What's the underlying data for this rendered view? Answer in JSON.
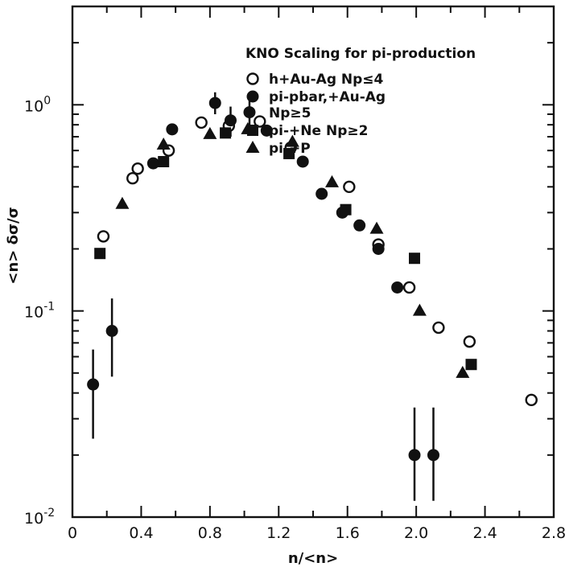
{
  "chart_data": {
    "type": "scatter",
    "title": "",
    "xlabel": "n/<n>",
    "ylabel": "<n> δσ/σ",
    "xlim": [
      0,
      2.8
    ],
    "ylim": [
      0.01,
      3
    ],
    "y_scale": "log",
    "grid": false,
    "x_ticks": [
      0,
      0.4,
      0.8,
      1.2,
      1.6,
      2.0,
      2.4,
      2.8
    ],
    "x_tick_labels": [
      "0",
      "0.4",
      "0.8",
      "1.2",
      "1.6",
      "2.0",
      "2.4",
      "2.8"
    ],
    "y_tick_labels": [
      {
        "value": 1,
        "base": "10",
        "exp": "0"
      },
      {
        "value": 0.1,
        "base": "10",
        "exp": "-1"
      },
      {
        "value": 0.01,
        "base": "10",
        "exp": "-2"
      }
    ],
    "legend": {
      "title": "KNO Scaling for pi-production",
      "position": "top-right",
      "entries": [
        {
          "marker": "open-circle",
          "lines": [
            "h+Au-Ag Np≤4"
          ]
        },
        {
          "marker": "filled-circle",
          "lines": [
            "pi-pbar,+Au-Ag",
            "Np≥5"
          ]
        },
        {
          "marker": "square",
          "lines": [
            "pi-+Ne Np≥2"
          ]
        },
        {
          "marker": "triangle",
          "lines": [
            "pi-+P"
          ]
        }
      ]
    },
    "series": [
      {
        "name": "h+Au-Ag Np≤4",
        "marker": "open-circle",
        "points": [
          {
            "x": 0.18,
            "y": 0.23
          },
          {
            "x": 0.35,
            "y": 0.44
          },
          {
            "x": 0.38,
            "y": 0.49
          },
          {
            "x": 0.56,
            "y": 0.6
          },
          {
            "x": 0.75,
            "y": 0.82
          },
          {
            "x": 0.91,
            "y": 0.79
          },
          {
            "x": 1.09,
            "y": 0.83
          },
          {
            "x": 1.27,
            "y": 0.62
          },
          {
            "x": 1.61,
            "y": 0.4
          },
          {
            "x": 1.78,
            "y": 0.21
          },
          {
            "x": 1.96,
            "y": 0.13
          },
          {
            "x": 2.13,
            "y": 0.083
          },
          {
            "x": 2.31,
            "y": 0.071
          },
          {
            "x": 2.67,
            "y": 0.037
          }
        ]
      },
      {
        "name": "pi-pbar,+Au-Ag Np≥5",
        "marker": "filled-circle",
        "points": [
          {
            "x": 0.12,
            "y": 0.044,
            "err_low": 0.024,
            "err_high": 0.065
          },
          {
            "x": 0.23,
            "y": 0.08,
            "err_low": 0.048,
            "err_high": 0.115
          },
          {
            "x": 0.47,
            "y": 0.52
          },
          {
            "x": 0.58,
            "y": 0.76
          },
          {
            "x": 0.83,
            "y": 1.02,
            "err_low": 0.9,
            "err_high": 1.15
          },
          {
            "x": 0.92,
            "y": 0.84,
            "err_low": 0.7,
            "err_high": 0.98
          },
          {
            "x": 1.03,
            "y": 0.92,
            "err_low": 0.8,
            "err_high": 1.05
          },
          {
            "x": 1.13,
            "y": 0.75
          },
          {
            "x": 1.34,
            "y": 0.53
          },
          {
            "x": 1.45,
            "y": 0.37
          },
          {
            "x": 1.57,
            "y": 0.3
          },
          {
            "x": 1.67,
            "y": 0.26
          },
          {
            "x": 1.78,
            "y": 0.2
          },
          {
            "x": 1.89,
            "y": 0.13
          },
          {
            "x": 1.99,
            "y": 0.02,
            "err_low": 0.012,
            "err_high": 0.034
          },
          {
            "x": 2.1,
            "y": 0.02,
            "err_low": 0.012,
            "err_high": 0.034
          }
        ]
      },
      {
        "name": "pi-+Ne Np≥2",
        "marker": "square",
        "points": [
          {
            "x": 0.16,
            "y": 0.19
          },
          {
            "x": 0.53,
            "y": 0.53
          },
          {
            "x": 0.89,
            "y": 0.73
          },
          {
            "x": 1.26,
            "y": 0.58
          },
          {
            "x": 1.59,
            "y": 0.31
          },
          {
            "x": 1.99,
            "y": 0.18
          },
          {
            "x": 2.32,
            "y": 0.055
          }
        ]
      },
      {
        "name": "pi-+P",
        "marker": "triangle",
        "points": [
          {
            "x": 0.29,
            "y": 0.33
          },
          {
            "x": 0.53,
            "y": 0.64
          },
          {
            "x": 0.8,
            "y": 0.72
          },
          {
            "x": 1.02,
            "y": 0.76
          },
          {
            "x": 1.28,
            "y": 0.66
          },
          {
            "x": 1.51,
            "y": 0.42
          },
          {
            "x": 1.77,
            "y": 0.25
          },
          {
            "x": 2.02,
            "y": 0.1
          },
          {
            "x": 2.27,
            "y": 0.05
          }
        ]
      }
    ]
  }
}
